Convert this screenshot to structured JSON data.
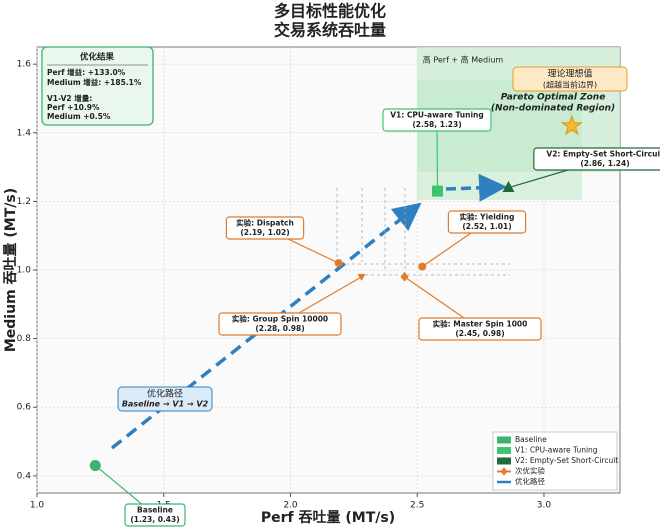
{
  "chart_data": {
    "type": "scatter",
    "title": "多目标性能优化",
    "subtitle": "交易系统吞吐量",
    "x_label": "Perf 吞吐量 (MT/s)",
    "y_label": "Medium 吞吐量 (MT/s)",
    "xlim": [
      1.0,
      3.3
    ],
    "ylim": [
      0.35,
      1.65
    ],
    "xticks": [
      {
        "value": 1.0,
        "label": "1.0"
      },
      1.5,
      {
        "value": 2.0,
        "label": "2.0"
      },
      2.5,
      {
        "value": 3.0,
        "label": "3.0"
      }
    ],
    "yticks": [
      0.4,
      0.6,
      0.8,
      {
        "value": 1.0,
        "label": "1.0"
      },
      1.2,
      1.4,
      1.6
    ],
    "grid": true,
    "legend_position": "lower right",
    "series": [
      {
        "name": "Baseline",
        "color": "#3cb46e",
        "marker": "circle",
        "x": [
          1.23
        ],
        "values": [
          0.43
        ]
      },
      {
        "name": "V1: CPU-aware Tuning",
        "color": "#3ec46f",
        "marker": "square",
        "x": [
          2.58
        ],
        "values": [
          1.23
        ]
      },
      {
        "name": "V2: Empty-Set Short-Circuit",
        "color": "#1f6b3b",
        "marker": "triangle",
        "x": [
          2.86
        ],
        "values": [
          1.24
        ]
      },
      {
        "name": "次优实验",
        "color": "#e07b2a",
        "markers": [
          "circle",
          "circle",
          "triangle-down",
          "diamond"
        ],
        "x": [
          2.19,
          2.52,
          2.28,
          2.45
        ],
        "values": [
          1.02,
          1.01,
          0.98,
          0.98
        ]
      }
    ],
    "path": {
      "name": "优化路径",
      "color": "#2f80c0",
      "label": "优化路径",
      "sublabel": "Baseline → V1 → V2"
    },
    "ideal": {
      "x": 3.11,
      "y": 1.42,
      "color": "#f5b82e",
      "label": "理论理想值",
      "sublabel": "(超越当前边界)"
    },
    "region": {
      "label": "高 Perf + 高 Medium",
      "title": "Pareto Optimal Zone",
      "subtitle": "(Non-dominated Region)"
    },
    "annotations": [
      {
        "text": "Baseline",
        "coords": "(1.23, 0.43)"
      },
      {
        "text": "V1: CPU-aware Tuning",
        "coords": "(2.58, 1.23)"
      },
      {
        "text": "V2: Empty-Set Short-Circuit",
        "coords": "(2.86, 1.24)"
      },
      {
        "text": "实验: Dispatch",
        "coords": "(2.19, 1.02)"
      },
      {
        "text": "实验: Yielding",
        "coords": "(2.52, 1.01)"
      },
      {
        "text": "实验: Group Spin 10000",
        "coords": "(2.28, 0.98)"
      },
      {
        "text": "实验: Master Spin 1000",
        "coords": "(2.45, 0.98)"
      }
    ],
    "summary": {
      "title": "优化结果",
      "lines": [
        "Perf 增益:  +133.0%",
        "Medium 增益:  +185.1%",
        "V1-V2 增量:",
        "Perf +10.9%",
        "Medium +0.5%"
      ]
    }
  }
}
